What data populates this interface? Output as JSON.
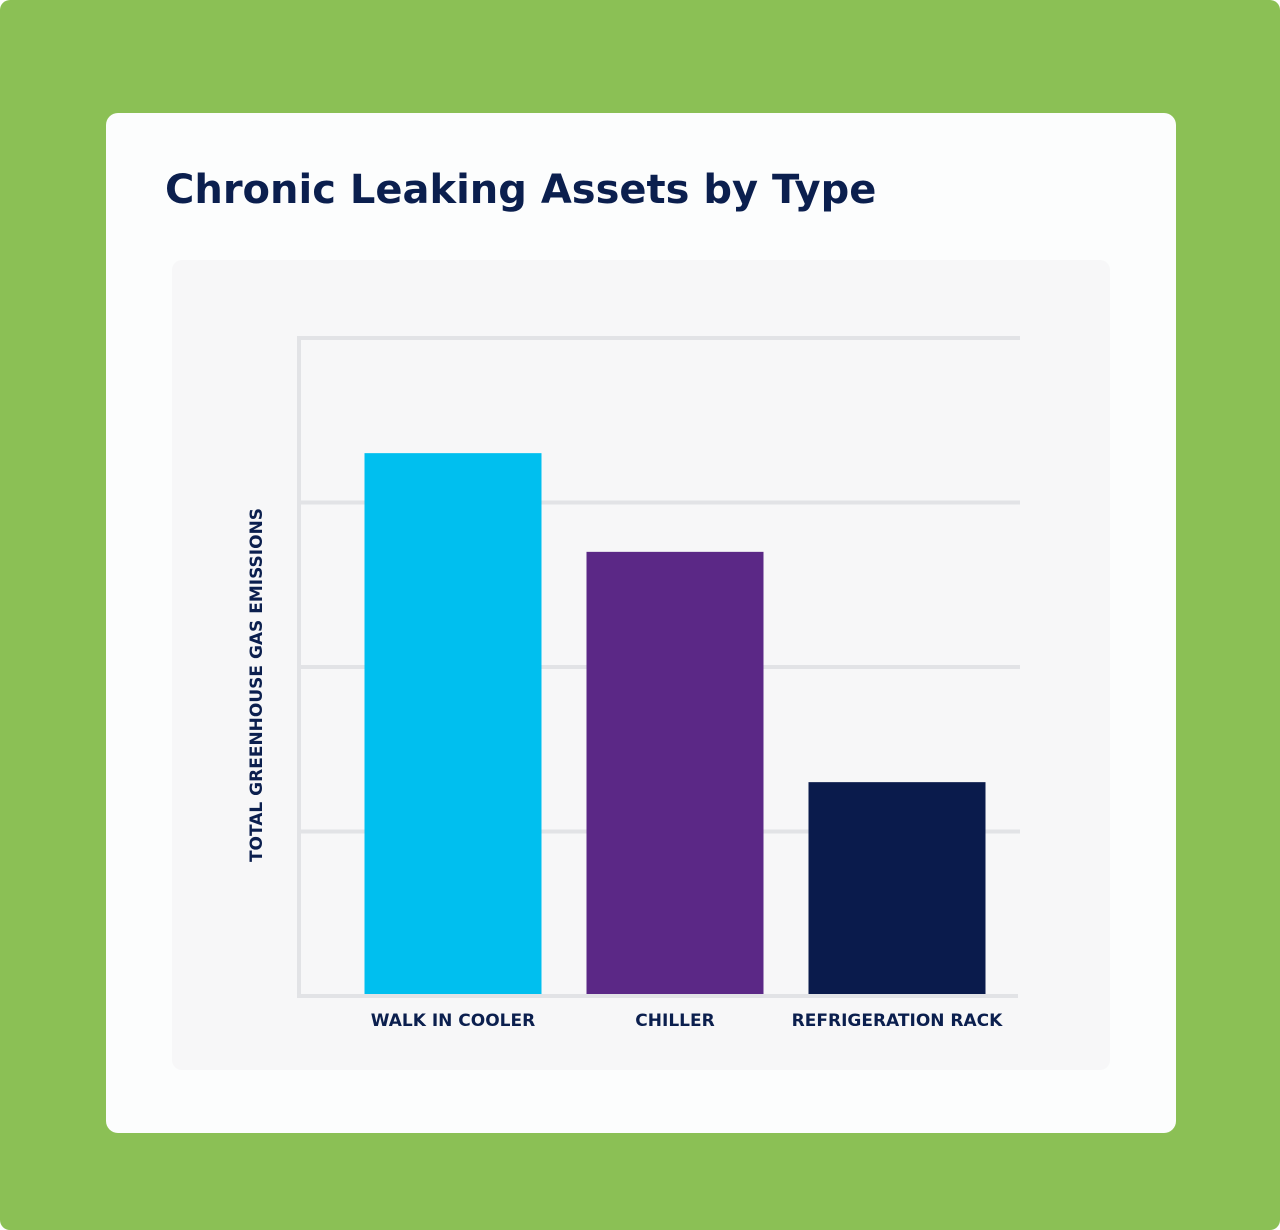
{
  "chart_data": {
    "type": "bar",
    "title": "Chronic Leaking Assets by Type",
    "y_label": "TOTAL GREENHOUSE GAS EMISSIONS",
    "categories": [
      "WALK IN COOLER",
      "CHILLER",
      "REFRIGERATION RACK"
    ],
    "values": [
      3.3,
      2.7,
      1.3
    ],
    "colors": [
      "#00bfef",
      "#5b2886",
      "#0a1b4c"
    ],
    "ylim": [
      0,
      4
    ],
    "yticks": [
      1,
      2,
      3,
      4
    ],
    "grid": true,
    "tick_labels": false
  }
}
